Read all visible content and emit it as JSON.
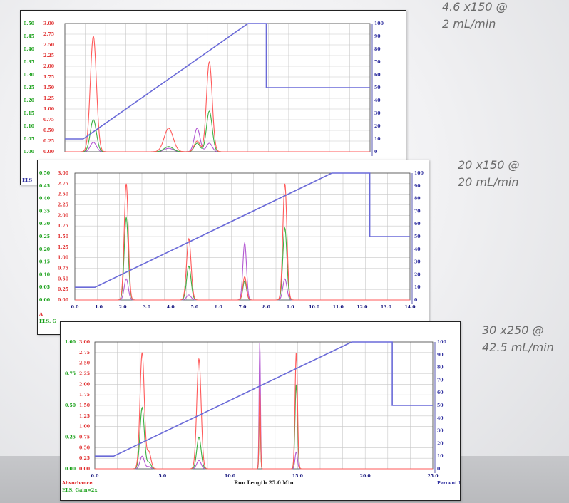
{
  "captions": [
    {
      "line1": "4.6 x150 @",
      "line2": "2 mL/min"
    },
    {
      "line1": "20 x150 @",
      "line2": "20 mL/min"
    },
    {
      "line1": "30 x250 @",
      "line2": "42.5 mL/min"
    }
  ],
  "colors": {
    "uv": "#ff5a5a",
    "els": "#3cb043",
    "purple": "#b45ad2",
    "gradient": "#6a6ad8",
    "grid": "#c8c8c8",
    "left_axis_green": "#18a018",
    "left_axis_red": "#e03030",
    "right_axis": "#3030a0"
  },
  "chart_data": [
    {
      "type": "line",
      "caption": "4.6 x150 @ 2 mL/min",
      "xlim": [
        0,
        15
      ],
      "left_green_ticks": [
        "0.50",
        "0.45",
        "0.40",
        "0.35",
        "0.30",
        "0.25",
        "0.20",
        "0.15",
        "0.10",
        "0.05",
        "0.00"
      ],
      "left_red_ticks": [
        "3.00",
        "2.75",
        "2.50",
        "2.25",
        "2.00",
        "1.75",
        "1.50",
        "1.25",
        "1.00",
        "0.75",
        "0.50",
        "0.25",
        "0.00"
      ],
      "right_ticks": [
        "100",
        "90",
        "80",
        "70",
        "60",
        "50",
        "40",
        "30",
        "20",
        "10",
        "0"
      ],
      "xtick_labels": [],
      "xlabel": "",
      "left_footer": [
        "ELS"
      ],
      "right_footer": "",
      "gradient_pct": {
        "x": [
          0,
          0.9,
          9.0,
          9.9,
          9.9,
          15
        ],
        "y": [
          10,
          10,
          100,
          100,
          50,
          50
        ]
      },
      "peaks": [
        {
          "center": 1.4,
          "width": 0.15,
          "uv": 2.7,
          "els": 0.75,
          "purple": 0.22
        },
        {
          "center": 5.1,
          "width": 0.22,
          "uv": 0.55,
          "els": 0.12,
          "purple": 0.08
        },
        {
          "center": 6.5,
          "width": 0.14,
          "uv": 0.25,
          "els": 0.2,
          "purple": 0.55
        },
        {
          "center": 7.1,
          "width": 0.14,
          "uv": 2.1,
          "els": 0.95,
          "purple": 0.2
        }
      ]
    },
    {
      "type": "line",
      "caption": "20 x150 @ 20 mL/min",
      "xlim": [
        0,
        15
      ],
      "left_green_ticks": [
        "0.50",
        "0.45",
        "0.40",
        "0.35",
        "0.30",
        "0.25",
        "0.20",
        "0.15",
        "0.10",
        "0.05",
        "0.00"
      ],
      "left_red_ticks": [
        "3.00",
        "2.75",
        "2.50",
        "2.25",
        "2.00",
        "1.75",
        "1.50",
        "1.25",
        "1.00",
        "0.75",
        "0.50",
        "0.25",
        "0.00"
      ],
      "right_ticks": [
        "100",
        "90",
        "80",
        "70",
        "60",
        "50",
        "40",
        "30",
        "20",
        "10",
        "0"
      ],
      "xtick_labels": [
        "0.0",
        "1.0",
        "2.0",
        "3.0",
        "4.0",
        "5.0",
        "6.0",
        "7.0",
        "8.0",
        "9.0",
        "10.0",
        "11.0",
        "12.0",
        "13.0",
        "14.0"
      ],
      "xlabel": "",
      "left_footer": [
        "A",
        "ELS. G"
      ],
      "right_footer": "",
      "gradient_pct": {
        "x": [
          0,
          0.9,
          11.5,
          13.2,
          13.2,
          15
        ],
        "y": [
          10,
          10,
          100,
          100,
          50,
          50
        ]
      },
      "peaks": [
        {
          "center": 2.3,
          "width": 0.09,
          "uv": 2.75,
          "els": 1.95,
          "purple": 0.5
        },
        {
          "center": 5.1,
          "width": 0.1,
          "uv": 1.45,
          "els": 0.8,
          "purple": 0.12
        },
        {
          "center": 7.6,
          "width": 0.08,
          "uv": 0.55,
          "els": 0.45,
          "purple": 1.35
        },
        {
          "center": 9.4,
          "width": 0.09,
          "uv": 2.75,
          "els": 1.7,
          "purple": 0.5
        }
      ]
    },
    {
      "type": "line",
      "caption": "30 x250 @ 42.5 mL/min",
      "xlim": [
        0,
        25
      ],
      "left_green_ticks": [
        "1.00",
        "",
        "",
        "0.75",
        "",
        "",
        "0.50",
        "",
        "",
        "0.25",
        "",
        "",
        "0.00"
      ],
      "left_red_ticks": [
        "3.00",
        "2.75",
        "2.50",
        "2.25",
        "2.00",
        "1.75",
        "1.50",
        "1.25",
        "1.00",
        "0.75",
        "0.50",
        "0.25",
        "0.00"
      ],
      "right_ticks": [
        "100",
        "90",
        "80",
        "70",
        "60",
        "50",
        "40",
        "30",
        "20",
        "10",
        "0"
      ],
      "xtick_labels": [
        "0.0",
        "",
        "5.0",
        "",
        "10.0",
        "",
        "15.0",
        "",
        "20.0",
        "",
        "25.0"
      ],
      "xlabel": "Run Length 25.0 Min",
      "left_footer": [
        "Absorbance",
        "ELS. Gain=2x"
      ],
      "right_footer": "Percent B",
      "gradient_pct": {
        "x": [
          0,
          1.4,
          19.0,
          22.0,
          22.0,
          25
        ],
        "y": [
          10,
          10,
          100,
          100,
          50,
          50
        ]
      },
      "peaks": [
        {
          "center": 3.5,
          "width": 0.16,
          "uv": 2.75,
          "els": 1.45,
          "purple": 0.3
        },
        {
          "center": 4.0,
          "width": 0.15,
          "uv": 0.4,
          "els": 0.15,
          "purple": 0.05
        },
        {
          "center": 7.7,
          "width": 0.16,
          "uv": 2.6,
          "els": 0.75,
          "purple": 0.2
        },
        {
          "center": 12.2,
          "width": 0.05,
          "uv": 1.9,
          "els": 1.6,
          "purple": 3.0
        },
        {
          "center": 14.9,
          "width": 0.09,
          "uv": 2.75,
          "els": 2.0,
          "purple": 0.4
        }
      ]
    }
  ]
}
